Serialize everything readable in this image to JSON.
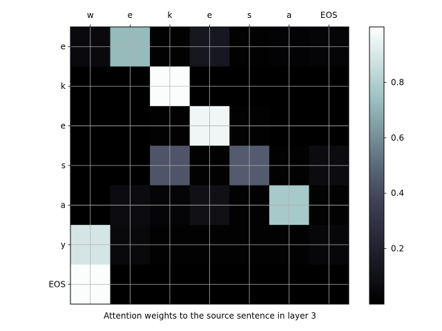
{
  "chart_data": {
    "type": "heatmap",
    "title": "",
    "xlabel": "Attention weights to the source sentence in layer 3",
    "ylabel": "",
    "x_categories": [
      "w",
      "e",
      "k",
      "e",
      "s",
      "a",
      "EOS"
    ],
    "y_categories": [
      "e",
      "k",
      "e",
      "s",
      "a",
      "y",
      "EOS"
    ],
    "x_tick_position": "top",
    "grid": true,
    "colormap": "bone",
    "colorbar": {
      "ticks": [
        0.2,
        0.4,
        0.6,
        0.8
      ],
      "range": [
        0.0,
        1.0
      ]
    },
    "values": [
      [
        0.06,
        0.72,
        0.01,
        0.13,
        0.01,
        0.02,
        0.03
      ],
      [
        0.0,
        0.0,
        0.99,
        0.0,
        0.0,
        0.0,
        0.0
      ],
      [
        0.0,
        0.0,
        0.01,
        0.96,
        0.01,
        0.0,
        0.0
      ],
      [
        0.0,
        0.0,
        0.43,
        0.01,
        0.45,
        0.01,
        0.07
      ],
      [
        0.0,
        0.07,
        0.03,
        0.09,
        0.01,
        0.77,
        0.01
      ],
      [
        0.89,
        0.05,
        0.01,
        0.01,
        0.01,
        0.01,
        0.04
      ],
      [
        0.99,
        0.0,
        0.0,
        0.0,
        0.0,
        0.0,
        0.0
      ]
    ]
  }
}
